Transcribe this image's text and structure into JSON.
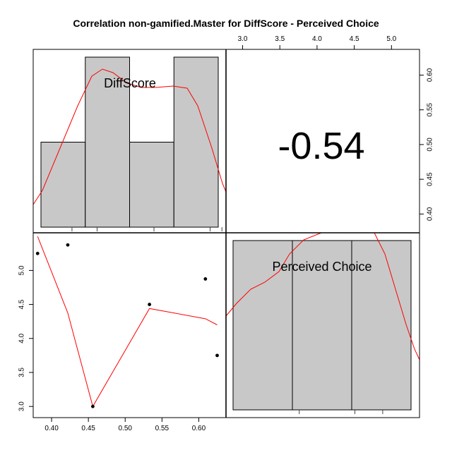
{
  "chart_data": {
    "type": "scatter",
    "title": "Correlation non-gamified.Master for DiffScore - Perceived Choice",
    "variables": [
      "DiffScore",
      "Perceived Choice"
    ],
    "correlation_label": "-0.54",
    "diffscore_axis": {
      "range": [
        0.375,
        0.637
      ],
      "ticks": [
        "0.40",
        "0.45",
        "0.50",
        "0.55",
        "0.60"
      ],
      "tick_values": [
        0.4,
        0.45,
        0.5,
        0.55,
        0.6
      ]
    },
    "perceived_choice_axis": {
      "range": [
        2.95,
        5.45
      ],
      "ticks": [
        "3.0",
        "3.5",
        "4.0",
        "4.5",
        "5.0"
      ],
      "tick_values": [
        3.0,
        3.5,
        4.0,
        4.5,
        5.0
      ]
    },
    "top_choice_axis": {
      "range": [
        2.9,
        5.5
      ],
      "ticks": [
        "3.0",
        "3.5",
        "4.0",
        "4.5",
        "5.0"
      ],
      "tick_values": [
        3.0,
        3.5,
        4.0,
        4.5,
        5.0
      ]
    },
    "scatter_points": [
      {
        "x": 0.381,
        "y": 5.25
      },
      {
        "x": 0.422,
        "y": 5.375
      },
      {
        "x": 0.456,
        "y": 3.0
      },
      {
        "x": 0.533,
        "y": 4.5
      },
      {
        "x": 0.609,
        "y": 4.875
      },
      {
        "x": 0.625,
        "y": 3.75
      }
    ],
    "smooth_line": [
      {
        "x": 0.381,
        "y": 5.5
      },
      {
        "x": 0.422,
        "y": 4.375
      },
      {
        "x": 0.456,
        "y": 3.0
      },
      {
        "x": 0.533,
        "y": 4.44
      },
      {
        "x": 0.609,
        "y": 4.29
      },
      {
        "x": 0.625,
        "y": 4.2
      }
    ],
    "hist_diffscore": {
      "bins": [
        [
          0.38,
          0.44
        ],
        [
          0.44,
          0.5
        ],
        [
          0.5,
          0.56
        ],
        [
          0.56,
          0.62
        ]
      ],
      "heights": [
        2,
        4,
        2,
        4
      ]
    },
    "hist_choice": {
      "bins": [
        [
          3.0,
          3.8
        ],
        [
          3.8,
          4.6
        ],
        [
          4.6,
          5.4
        ]
      ],
      "heights": [
        1,
        1,
        1
      ]
    },
    "rug_diffscore": [
      0.422,
      0.456,
      0.533,
      0.609,
      0.625
    ],
    "rug_choice": [
      3.75,
      4.5,
      4.875
    ],
    "colors": {
      "bar_fill": "#c8c8c8",
      "curve": "#ff0000",
      "axis": "#000000"
    }
  }
}
